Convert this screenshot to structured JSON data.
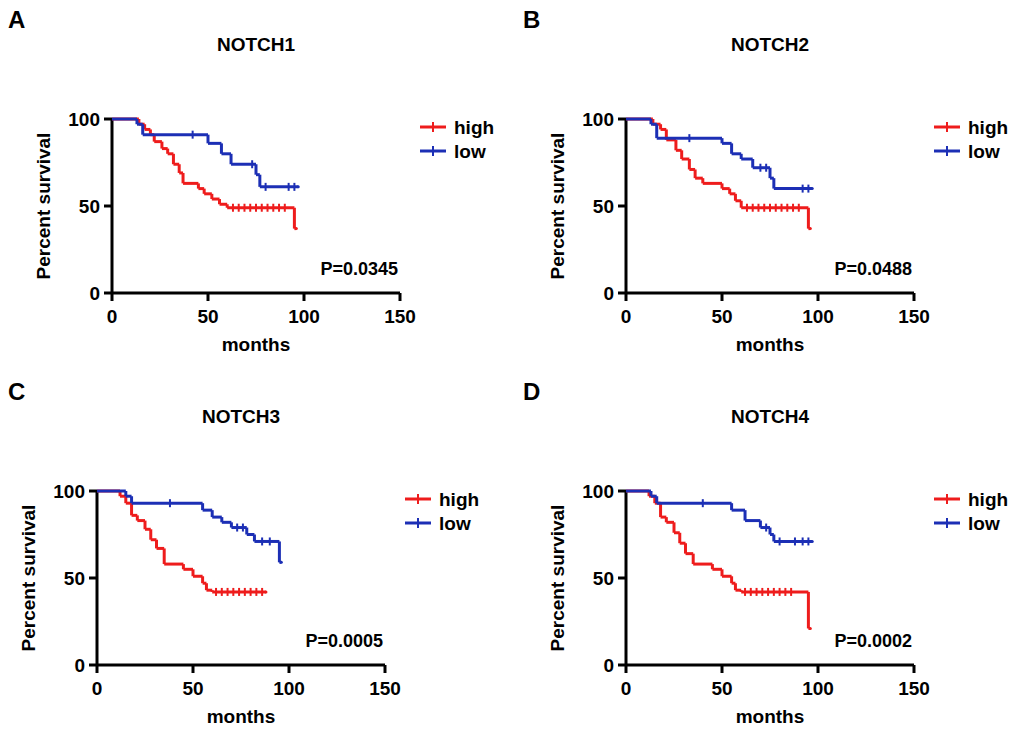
{
  "chart_data": [
    {
      "type": "line",
      "panel": "A",
      "title": "NOTCH1",
      "x_label": "months",
      "y_label": "Percent survival",
      "annotation": "P=0.0345",
      "line_style": "step",
      "legend": "right",
      "xlim": [
        0,
        150
      ],
      "xticks": [
        0,
        50,
        100,
        150
      ],
      "ylim": [
        0,
        100
      ],
      "yticks": [
        0,
        50,
        100
      ],
      "series": [
        {
          "name": "high",
          "color": "#ee1c1c",
          "x": [
            0,
            14,
            17,
            20,
            22,
            26,
            29,
            32,
            35,
            37,
            45,
            48,
            52,
            56,
            60,
            95,
            96
          ],
          "values": [
            100,
            97,
            94,
            91,
            87,
            83,
            80,
            74,
            69,
            63,
            60,
            57,
            54,
            51,
            49,
            37,
            37
          ],
          "censored": [
            63,
            66,
            69,
            72,
            75,
            78,
            81,
            84,
            87,
            90
          ]
        },
        {
          "name": "low",
          "color": "#1c2fb5",
          "x": [
            0,
            13,
            16,
            50,
            57,
            62,
            75,
            77,
            97
          ],
          "values": [
            100,
            97,
            91,
            86,
            80,
            74,
            68,
            61,
            61
          ],
          "censored": [
            42,
            73,
            80,
            92,
            95
          ]
        }
      ]
    },
    {
      "type": "line",
      "panel": "B",
      "title": "NOTCH2",
      "x_label": "months",
      "y_label": "Percent survival",
      "annotation": "P=0.0488",
      "line_style": "step",
      "legend": "right",
      "xlim": [
        0,
        150
      ],
      "xticks": [
        0,
        50,
        100,
        150
      ],
      "ylim": [
        0,
        100
      ],
      "yticks": [
        0,
        50,
        100
      ],
      "series": [
        {
          "name": "high",
          "color": "#ee1c1c",
          "x": [
            0,
            14,
            18,
            21,
            26,
            29,
            33,
            36,
            40,
            50,
            54,
            57,
            60,
            95,
            96
          ],
          "values": [
            100,
            97,
            94,
            88,
            82,
            77,
            71,
            66,
            63,
            60,
            57,
            53,
            49,
            37,
            37
          ],
          "censored": [
            63,
            66,
            69,
            72,
            75,
            78,
            81,
            84,
            87,
            90
          ]
        },
        {
          "name": "low",
          "color": "#1c2fb5",
          "x": [
            0,
            13,
            16,
            50,
            55,
            60,
            66,
            75,
            77,
            97
          ],
          "values": [
            100,
            97,
            89,
            86,
            80,
            77,
            72,
            66,
            60,
            60
          ],
          "censored": [
            33,
            70,
            73,
            92,
            95
          ]
        }
      ]
    },
    {
      "type": "line",
      "panel": "C",
      "title": "NOTCH3",
      "x_label": "months",
      "y_label": "Percent survival",
      "annotation": "P=0.0005",
      "line_style": "step",
      "legend": "right",
      "xlim": [
        0,
        150
      ],
      "xticks": [
        0,
        50,
        100,
        150
      ],
      "ylim": [
        0,
        100
      ],
      "yticks": [
        0,
        50,
        100
      ],
      "series": [
        {
          "name": "high",
          "color": "#ee1c1c",
          "x": [
            0,
            12,
            15,
            18,
            21,
            25,
            28,
            31,
            35,
            45,
            50,
            55,
            57,
            60,
            88
          ],
          "values": [
            100,
            97,
            93,
            86,
            83,
            78,
            72,
            67,
            58,
            55,
            51,
            47,
            43,
            42,
            42
          ],
          "censored": [
            62,
            65,
            68,
            71,
            74,
            77,
            80,
            83,
            86
          ]
        },
        {
          "name": "low",
          "color": "#1c2fb5",
          "x": [
            0,
            15,
            18,
            55,
            60,
            65,
            70,
            78,
            82,
            95,
            96
          ],
          "values": [
            100,
            97,
            93,
            89,
            85,
            82,
            79,
            75,
            71,
            59,
            59
          ],
          "censored": [
            38,
            73,
            76,
            86,
            90
          ]
        }
      ]
    },
    {
      "type": "line",
      "panel": "D",
      "title": "NOTCH4",
      "x_label": "months",
      "y_label": "Percent survival",
      "annotation": "P=0.0002",
      "line_style": "step",
      "legend": "right",
      "xlim": [
        0,
        150
      ],
      "xticks": [
        0,
        50,
        100,
        150
      ],
      "ylim": [
        0,
        100
      ],
      "yticks": [
        0,
        50,
        100
      ],
      "series": [
        {
          "name": "high",
          "color": "#ee1c1c",
          "x": [
            0,
            12,
            15,
            18,
            21,
            25,
            28,
            31,
            35,
            45,
            50,
            55,
            57,
            60,
            95,
            96
          ],
          "values": [
            100,
            97,
            93,
            85,
            82,
            76,
            70,
            64,
            58,
            55,
            51,
            47,
            43,
            42,
            21,
            21
          ],
          "censored": [
            62,
            65,
            68,
            71,
            74,
            77,
            80,
            83,
            86
          ]
        },
        {
          "name": "low",
          "color": "#1c2fb5",
          "x": [
            0,
            13,
            16,
            55,
            62,
            70,
            75,
            77,
            97
          ],
          "values": [
            100,
            97,
            93,
            89,
            83,
            79,
            75,
            71,
            71
          ],
          "censored": [
            40,
            73,
            80,
            88,
            92,
            95
          ]
        }
      ]
    }
  ]
}
